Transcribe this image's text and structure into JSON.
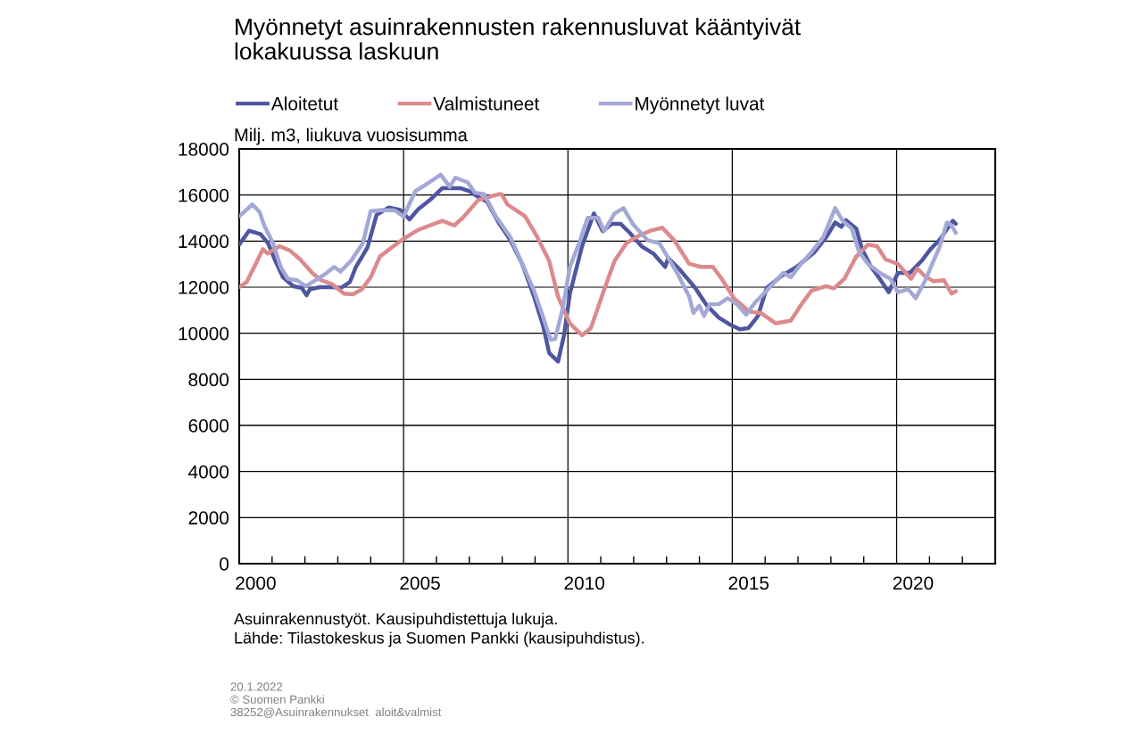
{
  "chart_data": {
    "type": "line",
    "title": "Myönnetyt asuinrakennusten rakennusluvat kääntyivät\nlokakuussa laskuun",
    "ylabel": "Milj. m3, liukuva vuosisumma",
    "annotations": [
      "Asuinrakennustyöt. Kausipuhdistettuja lukuja.\nLähde: Tilastokeskus ja Suomen Pankki (kausipuhdistus).",
      "20.1.2022\n© Suomen Pankki\n38252@Asuinrakennukset  aloit&valmist"
    ],
    "xlim": [
      2000,
      2023
    ],
    "xticks": [
      {
        "value": 2000.5,
        "label": "2000"
      },
      {
        "value": 2005.5,
        "label": "2005"
      },
      {
        "value": 2010.5,
        "label": "2010"
      },
      {
        "value": 2015.5,
        "label": "2015"
      },
      {
        "value": 2020.5,
        "label": "2020"
      },
      {
        "value": 2001,
        "label": null
      },
      {
        "value": 2002,
        "label": null
      },
      {
        "value": 2003,
        "label": null
      },
      {
        "value": 2004,
        "label": null
      },
      {
        "value": 2006,
        "label": null
      },
      {
        "value": 2007,
        "label": null
      },
      {
        "value": 2008,
        "label": null
      },
      {
        "value": 2009,
        "label": null
      },
      {
        "value": 2011,
        "label": null
      },
      {
        "value": 2012,
        "label": null
      },
      {
        "value": 2013,
        "label": null
      },
      {
        "value": 2014,
        "label": null
      },
      {
        "value": 2016,
        "label": null
      },
      {
        "value": 2017,
        "label": null
      },
      {
        "value": 2018,
        "label": null
      },
      {
        "value": 2019,
        "label": null
      },
      {
        "value": 2021,
        "label": null
      },
      {
        "value": 2022,
        "label": null
      }
    ],
    "ref_lines": [
      {
        "axis": "x",
        "value": 2005,
        "label": null,
        "color": "#000000"
      },
      {
        "axis": "x",
        "value": 2010,
        "label": null,
        "color": "#000000"
      },
      {
        "axis": "x",
        "value": 2015,
        "label": null,
        "color": "#000000"
      },
      {
        "axis": "x",
        "value": 2020,
        "label": null,
        "color": "#000000"
      }
    ],
    "ylim": [
      0,
      18000
    ],
    "yticks": [
      0,
      2000,
      4000,
      6000,
      8000,
      10000,
      12000,
      14000,
      16000,
      18000
    ],
    "grid": "y",
    "legend": "top",
    "marker": "none",
    "line_style": "solid",
    "series": [
      {
        "name": "Aloitetut",
        "color": "#4f56a0",
        "x": [
          2000.0,
          2000.3,
          2000.65,
          2000.88,
          2001.1,
          2001.33,
          2001.65,
          2001.9,
          2002.05,
          2002.15,
          2002.46,
          2002.83,
          2003.1,
          2003.37,
          2003.55,
          2003.9,
          2004.18,
          2004.55,
          2004.9,
          2005.18,
          2005.45,
          2005.8,
          2006.18,
          2006.72,
          2007.0,
          2007.27,
          2007.54,
          2007.89,
          2008.25,
          2008.61,
          2008.97,
          2009.25,
          2009.43,
          2009.7,
          2009.88,
          2010.06,
          2010.43,
          2010.79,
          2011.06,
          2011.33,
          2011.6,
          2011.88,
          2012.24,
          2012.6,
          2012.96,
          2013.05,
          2013.41,
          2013.87,
          2014.23,
          2014.59,
          2014.95,
          2015.23,
          2015.5,
          2015.78,
          2016.05,
          2016.5,
          2016.96,
          2017.5,
          2017.86,
          2018.13,
          2018.32,
          2018.45,
          2018.77,
          2018.95,
          2019.22,
          2019.49,
          2019.76,
          2020.04,
          2020.4,
          2020.76,
          2021.03,
          2021.3,
          2021.71,
          2021.8
        ],
        "values": [
          13850,
          14450,
          14300,
          13900,
          13140,
          12430,
          12040,
          11970,
          11650,
          11910,
          12000,
          12000,
          11970,
          12230,
          12880,
          13720,
          15140,
          15460,
          15350,
          14940,
          15390,
          15780,
          16300,
          16300,
          16170,
          15910,
          15720,
          14810,
          14040,
          13010,
          11590,
          10300,
          9140,
          8770,
          9910,
          11720,
          13780,
          15200,
          14430,
          14750,
          14750,
          14360,
          13780,
          13460,
          12880,
          13270,
          12750,
          11970,
          11200,
          10680,
          10360,
          10170,
          10230,
          10750,
          11970,
          12490,
          12880,
          13520,
          14170,
          14810,
          14620,
          14910,
          14550,
          13650,
          12880,
          12360,
          11780,
          12620,
          12620,
          13140,
          13650,
          14040,
          14880,
          14750
        ]
      },
      {
        "name": "Valmistuneet",
        "color": "#dc8a8c",
        "x": [
          2000.0,
          2000.23,
          2000.5,
          2000.72,
          2000.86,
          2001.22,
          2001.54,
          2001.86,
          2002.22,
          2002.5,
          2002.83,
          2003.19,
          2003.46,
          2003.73,
          2004.0,
          2004.28,
          2004.64,
          2005.0,
          2005.45,
          2005.8,
          2006.18,
          2006.54,
          2006.8,
          2007.27,
          2007.9,
          2007.98,
          2008.16,
          2008.7,
          2009.07,
          2009.43,
          2009.7,
          2010.06,
          2010.43,
          2010.7,
          2011.06,
          2011.42,
          2011.78,
          2012.15,
          2012.51,
          2012.87,
          2013.23,
          2013.69,
          2014.05,
          2014.41,
          2014.68,
          2015.05,
          2015.41,
          2015.5,
          2015.87,
          2016.32,
          2016.78,
          2017.14,
          2017.41,
          2017.86,
          2018.09,
          2018.41,
          2018.77,
          2019.13,
          2019.4,
          2019.67,
          2020.04,
          2020.44,
          2020.63,
          2020.85,
          2021.12,
          2021.44,
          2021.67,
          2021.8
        ],
        "values": [
          12000,
          12230,
          13010,
          13650,
          13460,
          13780,
          13590,
          13200,
          12620,
          12300,
          12130,
          11720,
          11690,
          11910,
          12430,
          13330,
          13720,
          14100,
          14490,
          14680,
          14880,
          14680,
          15010,
          15780,
          16040,
          16040,
          15590,
          15070,
          14170,
          13140,
          11590,
          10430,
          9910,
          10230,
          11720,
          13140,
          13910,
          14230,
          14450,
          14580,
          14040,
          13010,
          12880,
          12880,
          12360,
          11520,
          11070,
          10940,
          10880,
          10430,
          10550,
          11330,
          11850,
          12040,
          11950,
          12360,
          13330,
          13850,
          13780,
          13200,
          13010,
          12360,
          12810,
          12490,
          12260,
          12300,
          11720,
          11820
        ]
      },
      {
        "name": "Myönnetyt luvat",
        "color": "#a4a8d6",
        "x": [
          2000.0,
          2000.4,
          2000.62,
          2000.76,
          2001.03,
          2001.26,
          2001.48,
          2001.76,
          2002.03,
          2002.39,
          2002.66,
          2002.89,
          2003.08,
          2003.4,
          2003.76,
          2004.0,
          2004.37,
          2004.73,
          2005.0,
          2005.36,
          2005.72,
          2006.13,
          2006.4,
          2006.58,
          2006.95,
          2007.17,
          2007.45,
          2007.81,
          2008.25,
          2008.61,
          2008.97,
          2009.25,
          2009.47,
          2009.61,
          2009.84,
          2010.06,
          2010.34,
          2010.6,
          2010.92,
          2011.1,
          2011.42,
          2011.69,
          2011.97,
          2012.42,
          2012.78,
          2013.05,
          2013.32,
          2013.69,
          2013.82,
          2014.0,
          2014.14,
          2014.32,
          2014.59,
          2014.86,
          2015.14,
          2015.42,
          2015.69,
          2015.96,
          2016.55,
          2016.78,
          2017.05,
          2017.41,
          2017.77,
          2018.13,
          2018.36,
          2018.63,
          2018.86,
          2019.13,
          2019.49,
          2019.81,
          2020.04,
          2020.35,
          2020.58,
          2020.85,
          2021.12,
          2021.3,
          2021.53,
          2021.67,
          2021.8
        ],
        "values": [
          15070,
          15590,
          15260,
          14680,
          13910,
          12880,
          12360,
          12300,
          12040,
          12360,
          12620,
          12880,
          12680,
          13140,
          13910,
          15300,
          15350,
          15330,
          15070,
          16170,
          16490,
          16880,
          16360,
          16750,
          16550,
          16100,
          16040,
          15070,
          14170,
          13010,
          11850,
          10680,
          9720,
          9750,
          11070,
          12880,
          13910,
          15010,
          15010,
          14430,
          15200,
          15430,
          14750,
          14040,
          13910,
          13270,
          12620,
          11590,
          10880,
          11200,
          10750,
          11260,
          11260,
          11520,
          11260,
          10810,
          11330,
          11720,
          12620,
          12430,
          12940,
          13520,
          14170,
          15430,
          14880,
          14550,
          13520,
          13010,
          12620,
          12360,
          11780,
          11910,
          11520,
          12230,
          13140,
          13720,
          14810,
          14680,
          14360
        ]
      }
    ]
  }
}
